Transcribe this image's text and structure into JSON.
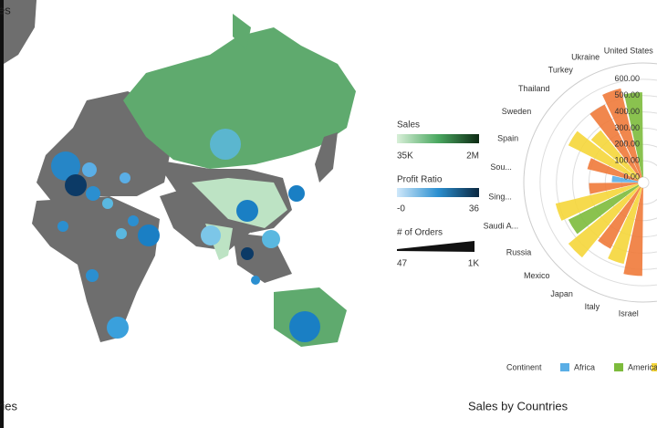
{
  "map": {
    "top_label": "es",
    "title": "ries",
    "legend": {
      "sales": {
        "title": "Sales",
        "min": "35K",
        "max": "2M"
      },
      "profit": {
        "title": "Profit Ratio",
        "min": "-0",
        "max": "36"
      },
      "orders": {
        "title": "# of Orders",
        "min": "47",
        "max": "1K"
      }
    }
  },
  "chart_data": {
    "type": "polar-bar",
    "title": "Sales by Countries",
    "categories": [
      "United States",
      "Ukraine",
      "Turkey",
      "Thailand",
      "Sweden",
      "Spain",
      "Sou...",
      "Sing...",
      "Saudi A...",
      "Russia",
      "Mexico",
      "Japan",
      "Italy",
      "Israel"
    ],
    "values": [
      520,
      560,
      500,
      380,
      480,
      320,
      160,
      300,
      520,
      480,
      560,
      420,
      480,
      540
    ],
    "colors": [
      "#7dbb3c",
      "#f07a3a",
      "#f07a3a",
      "#f5d63a",
      "#f5d63a",
      "#f07a3a",
      "#5aaee6",
      "#f07a3a",
      "#f5d63a",
      "#7dbb3c",
      "#f5d63a",
      "#f07a3a",
      "#f5d63a",
      "#f07a3a"
    ],
    "rlim": [
      0,
      700
    ],
    "rticks": [
      {
        "value": 0,
        "label": "0.00"
      },
      {
        "value": 100,
        "label": "100.00"
      },
      {
        "value": 200,
        "label": "200.00"
      },
      {
        "value": 300,
        "label": "300.00"
      },
      {
        "value": 400,
        "label": "400.00"
      },
      {
        "value": 500,
        "label": "500.00"
      },
      {
        "value": 600,
        "label": "600.00"
      }
    ],
    "legend_title": "Continent",
    "continents": [
      {
        "name": "Africa",
        "color": "#5aaee6"
      },
      {
        "name": "America",
        "color": "#7dbb3c"
      }
    ]
  }
}
